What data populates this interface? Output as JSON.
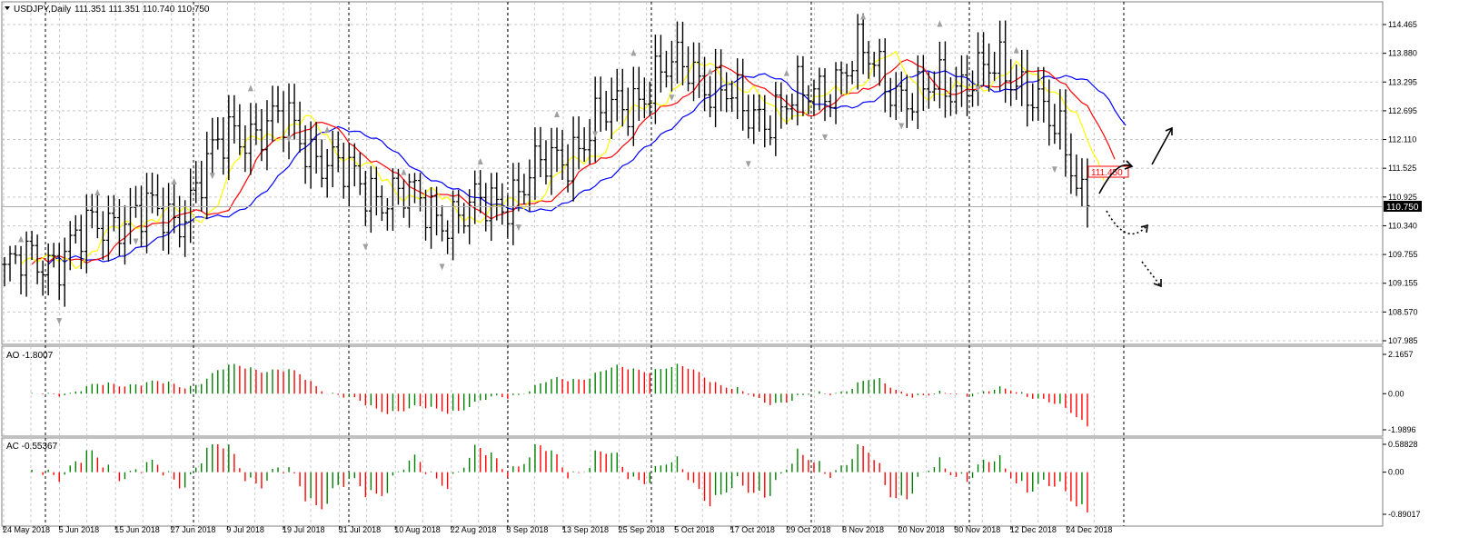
{
  "header": {
    "symbol": "USDJPY,Daily",
    "ohlc": "111.351 111.351 110.740 110.750"
  },
  "colors": {
    "bar": "#000000",
    "ma_fast": "#ffff00",
    "ma_mid": "#ff0000",
    "ma_slow": "#0000ff",
    "ao_up": "#008000",
    "ao_down": "#ff0000",
    "grid": "#c8c8c8",
    "current_price_bg": "#000000",
    "target_box": "#ff0000"
  },
  "price_axis": {
    "ticks": [
      "114.465",
      "113.880",
      "113.295",
      "112.695",
      "112.110",
      "111.525",
      "110.925",
      "110.340",
      "109.755",
      "109.155",
      "108.570",
      "107.985"
    ],
    "current_price": "110.750",
    "target_label": "111.450"
  },
  "ao_panel": {
    "title": "AO -1.8007",
    "ticks": [
      "2.1657",
      "0.00",
      "-1.9896"
    ]
  },
  "ac_panel": {
    "title": "AC -0.55367",
    "ticks": [
      "0.58828",
      "0.00",
      "-0.89017"
    ]
  },
  "x_axis": {
    "labels": [
      "24 May 2018",
      "5 Jun 2018",
      "15 Jun 2018",
      "27 Jun 2018",
      "9 Jul 2018",
      "19 Jul 2018",
      "31 Jul 2018",
      "10 Aug 2018",
      "22 Aug 2018",
      "3 Sep 2018",
      "13 Sep 2018",
      "25 Sep 2018",
      "5 Oct 2018",
      "17 Oct 2018",
      "29 Oct 2018",
      "8 Nov 2018",
      "20 Nov 2018",
      "30 Nov 2018",
      "12 Dec 2018",
      "24 Dec 2018"
    ]
  },
  "chart_data": [
    {
      "type": "line",
      "subtype": "ohlc-bar",
      "symbol": "USDJPY",
      "timeframe": "Daily",
      "ylim": [
        107.985,
        114.465
      ],
      "close_series_approx": [
        {
          "date": "24 May 2018",
          "close": 109.4
        },
        {
          "date": "5 Jun 2018",
          "close": 109.8
        },
        {
          "date": "15 Jun 2018",
          "close": 110.6
        },
        {
          "date": "27 Jun 2018",
          "close": 110.5
        },
        {
          "date": "9 Jul 2018",
          "close": 112.3
        },
        {
          "date": "19 Jul 2018",
          "close": 112.4
        },
        {
          "date": "31 Jul 2018",
          "close": 111.3
        },
        {
          "date": "10 Aug 2018",
          "close": 110.9
        },
        {
          "date": "22 Aug 2018",
          "close": 110.5
        },
        {
          "date": "3 Sep 2018",
          "close": 111.1
        },
        {
          "date": "13 Sep 2018",
          "close": 112.0
        },
        {
          "date": "25 Sep 2018",
          "close": 113.0
        },
        {
          "date": "5 Oct 2018",
          "close": 113.7
        },
        {
          "date": "17 Oct 2018",
          "close": 112.6
        },
        {
          "date": "29 Oct 2018",
          "close": 112.9
        },
        {
          "date": "8 Nov 2018",
          "close": 113.8
        },
        {
          "date": "20 Nov 2018",
          "close": 112.9
        },
        {
          "date": "30 Nov 2018",
          "close": 113.5
        },
        {
          "date": "12 Dec 2018",
          "close": 113.3
        },
        {
          "date": "24 Dec 2018",
          "close": 110.75
        }
      ]
    },
    {
      "type": "bar",
      "name": "AO",
      "ylim": [
        -1.9896,
        2.1657
      ]
    },
    {
      "type": "bar",
      "name": "AC",
      "ylim": [
        -0.89017,
        0.58828
      ]
    }
  ]
}
